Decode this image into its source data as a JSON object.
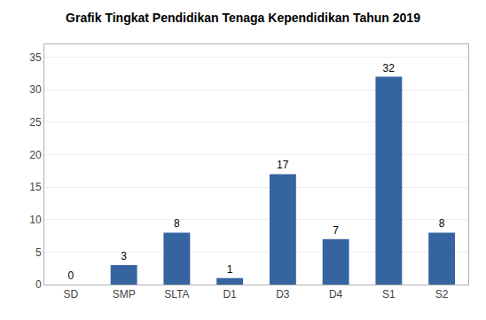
{
  "chart_data": {
    "type": "bar",
    "title": "Grafik Tingkat Pendidikan Tenaga Kependidikan Tahun 2019",
    "categories": [
      "SD",
      "SMP",
      "SLTA",
      "D1",
      "D3",
      "D4",
      "S1",
      "S2"
    ],
    "values": [
      0,
      3,
      8,
      1,
      17,
      7,
      32,
      8
    ],
    "color": "#3564A0",
    "ylim": [
      0,
      37
    ],
    "yticks": [
      0,
      5,
      10,
      15,
      20,
      25,
      30,
      35
    ],
    "grid": true,
    "data_labels": true
  }
}
